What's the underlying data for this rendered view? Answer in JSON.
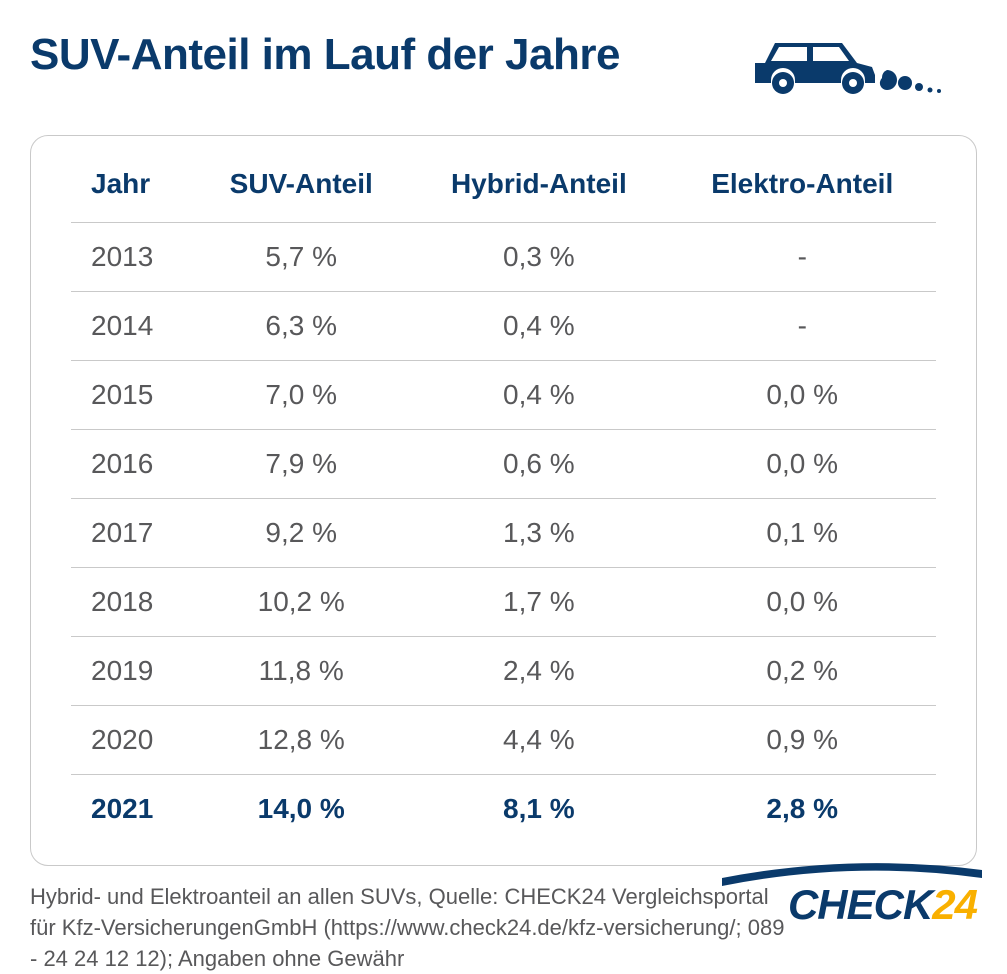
{
  "title": "SUV-Anteil im Lauf der Jahre",
  "colors": {
    "primary": "#0a3a6b",
    "text_body": "#58585a",
    "border": "#c9c9c9",
    "accent": "#f9b000",
    "background": "#ffffff"
  },
  "table": {
    "type": "table",
    "columns": [
      "Jahr",
      "SUV-Anteil",
      "Hybrid-Anteil",
      "Elektro-Anteil"
    ],
    "column_align": [
      "left",
      "center",
      "center",
      "center"
    ],
    "header_fontsize": 28,
    "header_fontweight": 700,
    "header_color": "#0a3a6b",
    "cell_fontsize": 28,
    "cell_color": "#58585a",
    "row_border_color": "#c9c9c9",
    "rows": [
      {
        "cells": [
          "2013",
          "5,7 %",
          "0,3 %",
          "-"
        ],
        "highlight": false
      },
      {
        "cells": [
          "2014",
          "6,3 %",
          "0,4 %",
          "-"
        ],
        "highlight": false
      },
      {
        "cells": [
          "2015",
          "7,0 %",
          "0,4 %",
          "0,0 %"
        ],
        "highlight": false
      },
      {
        "cells": [
          "2016",
          "7,9 %",
          "0,6 %",
          "0,0 %"
        ],
        "highlight": false
      },
      {
        "cells": [
          "2017",
          "9,2 %",
          "1,3 %",
          "0,1 %"
        ],
        "highlight": false
      },
      {
        "cells": [
          "2018",
          "10,2 %",
          "1,7 %",
          "0,0 %"
        ],
        "highlight": false
      },
      {
        "cells": [
          "2019",
          "11,8 %",
          "2,4 %",
          "0,2 %"
        ],
        "highlight": false
      },
      {
        "cells": [
          "2020",
          "12,8 %",
          "4,4 %",
          "0,9 %"
        ],
        "highlight": false
      },
      {
        "cells": [
          "2021",
          "14,0 %",
          "8,1 %",
          "2,8 %"
        ],
        "highlight": true
      }
    ],
    "highlight_color": "#0a3a6b",
    "highlight_fontweight": 700
  },
  "footnote": "Hybrid- und Elektroanteil an allen SUVs, Quelle: CHECK24 Vergleichsportal für Kfz-VersicherungenGmbH (https://www.check24.de/kfz-versicherung/; 089 - 24 24 12 12); Angaben ohne Gewähr",
  "logo": {
    "text_primary": "CHECK",
    "text_accent": "24",
    "primary_color": "#0a3a6b",
    "accent_color": "#f9b000",
    "fontsize": 42
  },
  "icon": {
    "name": "suv-exhaust-icon",
    "color": "#0a3a6b"
  }
}
